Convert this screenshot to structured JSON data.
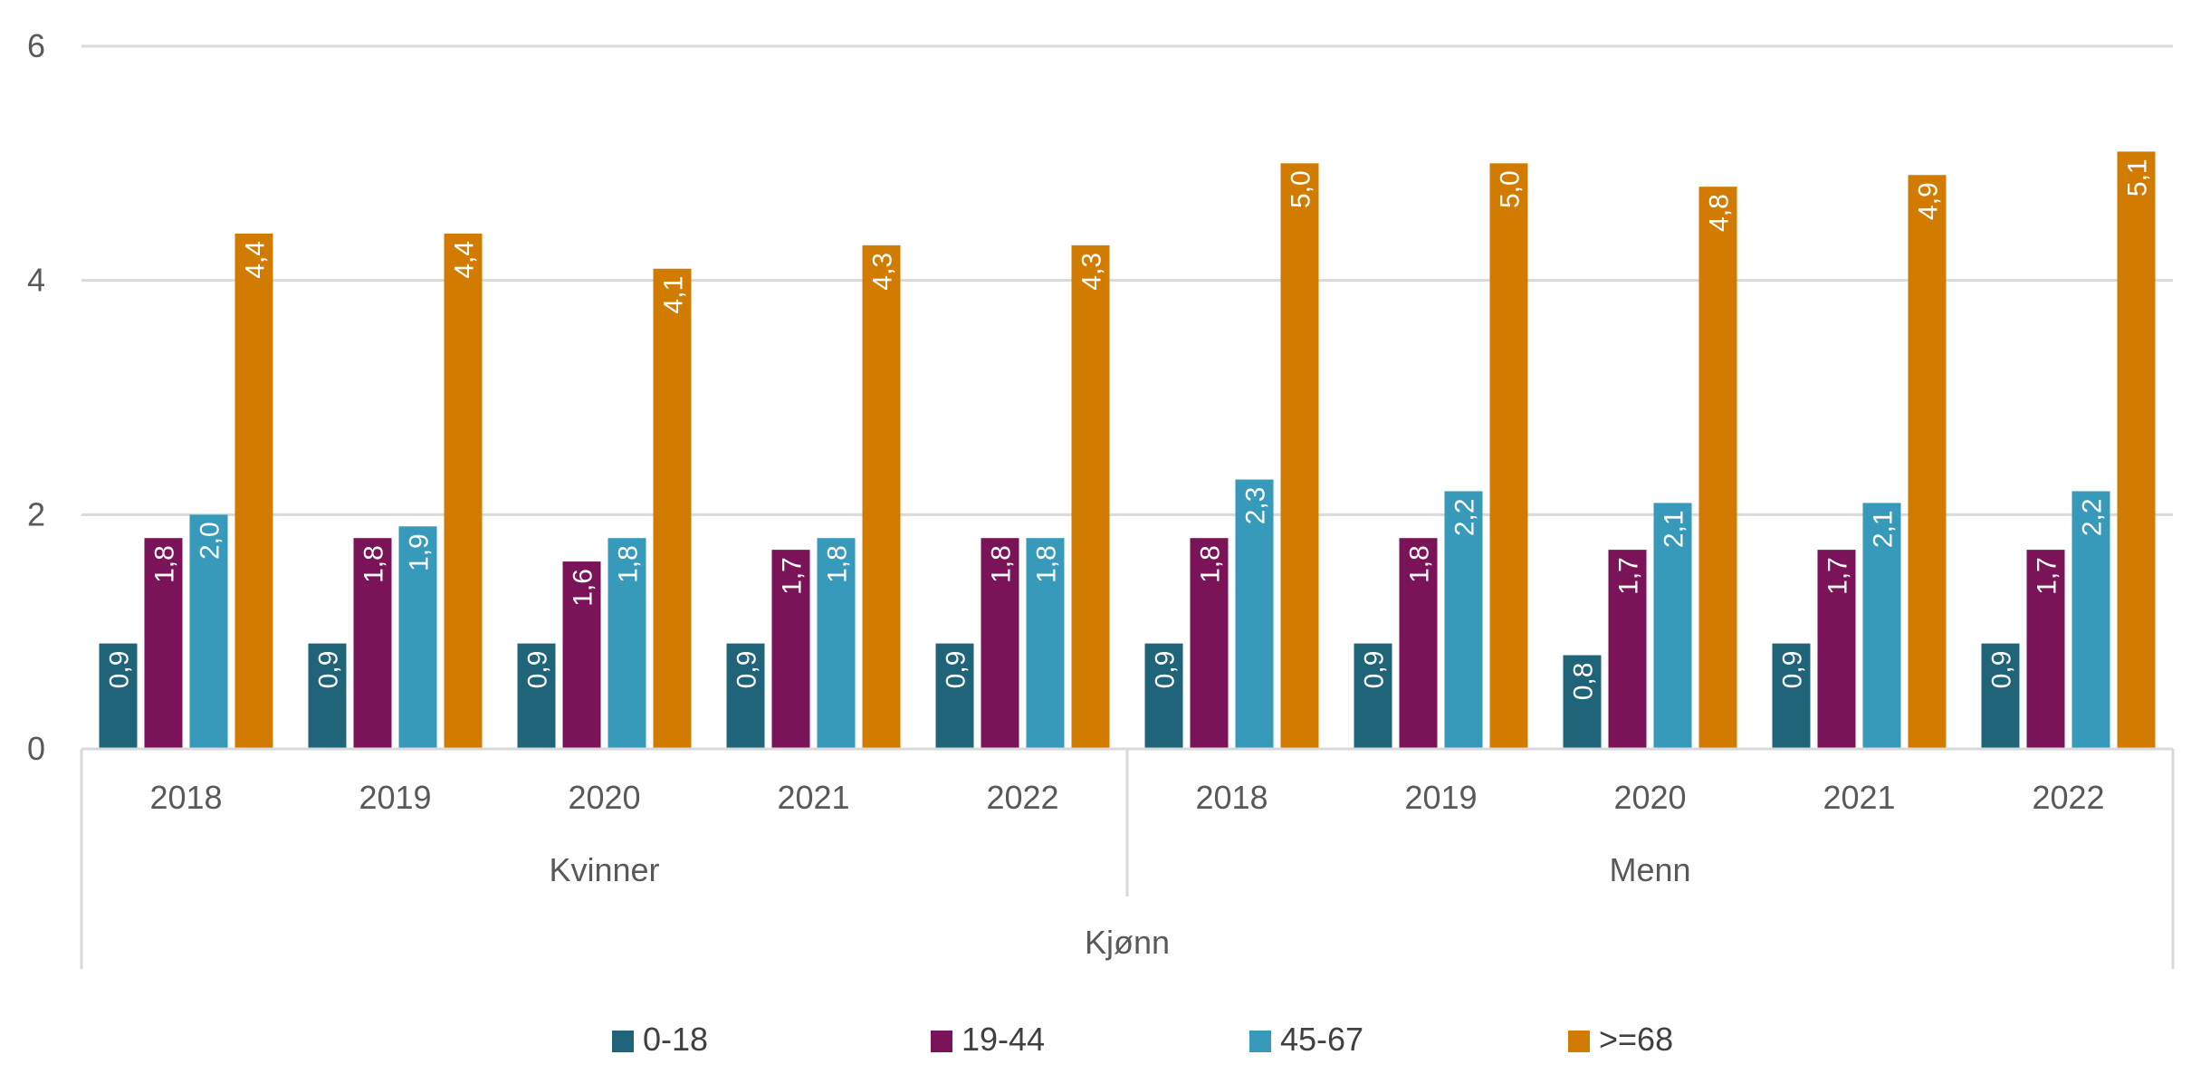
{
  "chart_data": {
    "type": "bar",
    "title": "",
    "ylim": [
      0,
      6
    ],
    "yticks": [
      0,
      2,
      4,
      6
    ],
    "grid": true,
    "legend_position": "bottom",
    "axis_group_label": "Kjønn",
    "groups": [
      {
        "name": "Kvinner",
        "categories": [
          "2018",
          "2019",
          "2020",
          "2021",
          "2022"
        ]
      },
      {
        "name": "Menn",
        "categories": [
          "2018",
          "2019",
          "2020",
          "2021",
          "2022"
        ]
      }
    ],
    "series": [
      {
        "name": "0-18",
        "color": "#1f6478",
        "values": [
          0.9,
          0.9,
          0.9,
          0.9,
          0.9,
          0.9,
          0.9,
          0.8,
          0.9,
          0.9
        ],
        "labels": [
          "0,9",
          "0,9",
          "0,9",
          "0,9",
          "0,9",
          "0,9",
          "0,9",
          "0,8",
          "0,9",
          "0,9"
        ]
      },
      {
        "name": "19-44",
        "color": "#7b1358",
        "values": [
          1.8,
          1.8,
          1.6,
          1.7,
          1.8,
          1.8,
          1.8,
          1.7,
          1.7,
          1.7
        ],
        "labels": [
          "1,8",
          "1,8",
          "1,6",
          "1,7",
          "1,8",
          "1,8",
          "1,8",
          "1,7",
          "1,7",
          "1,7"
        ]
      },
      {
        "name": "45-67",
        "color": "#379aba",
        "values": [
          2.0,
          1.9,
          1.8,
          1.8,
          1.8,
          2.3,
          2.2,
          2.1,
          2.1,
          2.2
        ],
        "labels": [
          "2,0",
          "1,9",
          "1,8",
          "1,8",
          "1,8",
          "2,3",
          "2,2",
          "2,1",
          "2,1",
          "2,2"
        ]
      },
      {
        "name": ">=68",
        "color": "#d17b00",
        "values": [
          4.4,
          4.4,
          4.1,
          4.3,
          4.3,
          5.0,
          5.0,
          4.8,
          4.9,
          5.1
        ],
        "labels": [
          "4,4",
          "4,4",
          "4,1",
          "4,3",
          "4,3",
          "5,0",
          "5,0",
          "4,8",
          "4,9",
          "5,1"
        ]
      }
    ]
  }
}
